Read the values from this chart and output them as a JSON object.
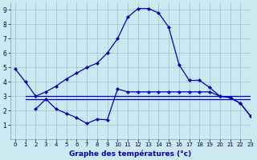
{
  "title": "Graphe des températures (°c)",
  "background_color": "#cce8f0",
  "grid_color": "#9ec8d8",
  "line_color": "#0000bb",
  "xlim": [
    -0.5,
    23
  ],
  "ylim": [
    0,
    9.5
  ],
  "xticks": [
    0,
    1,
    2,
    3,
    4,
    5,
    6,
    7,
    8,
    9,
    10,
    11,
    12,
    13,
    14,
    15,
    16,
    17,
    18,
    19,
    20,
    21,
    22,
    23
  ],
  "yticks": [
    1,
    2,
    3,
    4,
    5,
    6,
    7,
    8,
    9
  ],
  "series1_x": [
    0,
    1,
    2,
    3,
    4,
    5,
    6,
    7,
    8,
    9,
    10,
    11,
    12,
    13,
    14,
    15,
    16,
    17,
    18,
    19,
    20,
    21,
    22,
    23
  ],
  "series1_y": [
    4.9,
    4.0,
    3.0,
    3.3,
    3.7,
    4.2,
    4.6,
    5.0,
    5.3,
    6.0,
    7.0,
    8.5,
    9.1,
    9.1,
    8.8,
    7.8,
    5.2,
    4.1,
    4.1,
    3.6,
    3.0,
    2.9,
    2.5,
    1.6
  ],
  "series2_x": [
    1,
    2,
    3,
    4,
    5,
    6,
    7,
    8,
    9,
    10,
    11,
    12,
    13,
    14,
    15,
    16,
    17,
    18,
    19,
    20,
    21,
    22,
    23
  ],
  "series2_y": [
    3.0,
    3.0,
    3.0,
    3.0,
    3.0,
    3.0,
    3.0,
    3.0,
    3.0,
    3.0,
    3.0,
    3.0,
    3.0,
    3.0,
    3.0,
    3.0,
    3.0,
    3.0,
    3.0,
    3.0,
    3.0,
    3.0,
    3.0
  ],
  "series3_x": [
    1,
    2,
    3,
    4,
    5,
    6,
    7,
    8,
    9,
    10,
    11,
    12,
    13,
    14,
    15,
    16,
    17,
    18,
    19,
    20,
    21,
    22,
    23
  ],
  "series3_y": [
    2.8,
    2.8,
    2.8,
    2.8,
    2.8,
    2.8,
    2.8,
    2.8,
    2.8,
    2.8,
    2.8,
    2.8,
    2.8,
    2.8,
    2.8,
    2.8,
    2.8,
    2.8,
    2.8,
    2.8,
    2.8,
    2.8,
    2.8
  ],
  "series4_x": [
    2,
    3,
    4,
    5,
    6,
    7,
    8,
    9,
    10,
    11,
    12,
    13,
    14,
    15,
    16,
    17,
    18,
    19,
    20,
    21,
    22,
    23
  ],
  "series4_y": [
    2.1,
    2.8,
    2.1,
    1.8,
    1.5,
    1.1,
    1.4,
    1.35,
    3.5,
    3.3,
    3.3,
    3.3,
    3.3,
    3.3,
    3.3,
    3.3,
    3.3,
    3.3,
    3.0,
    2.9,
    2.5,
    1.6
  ]
}
